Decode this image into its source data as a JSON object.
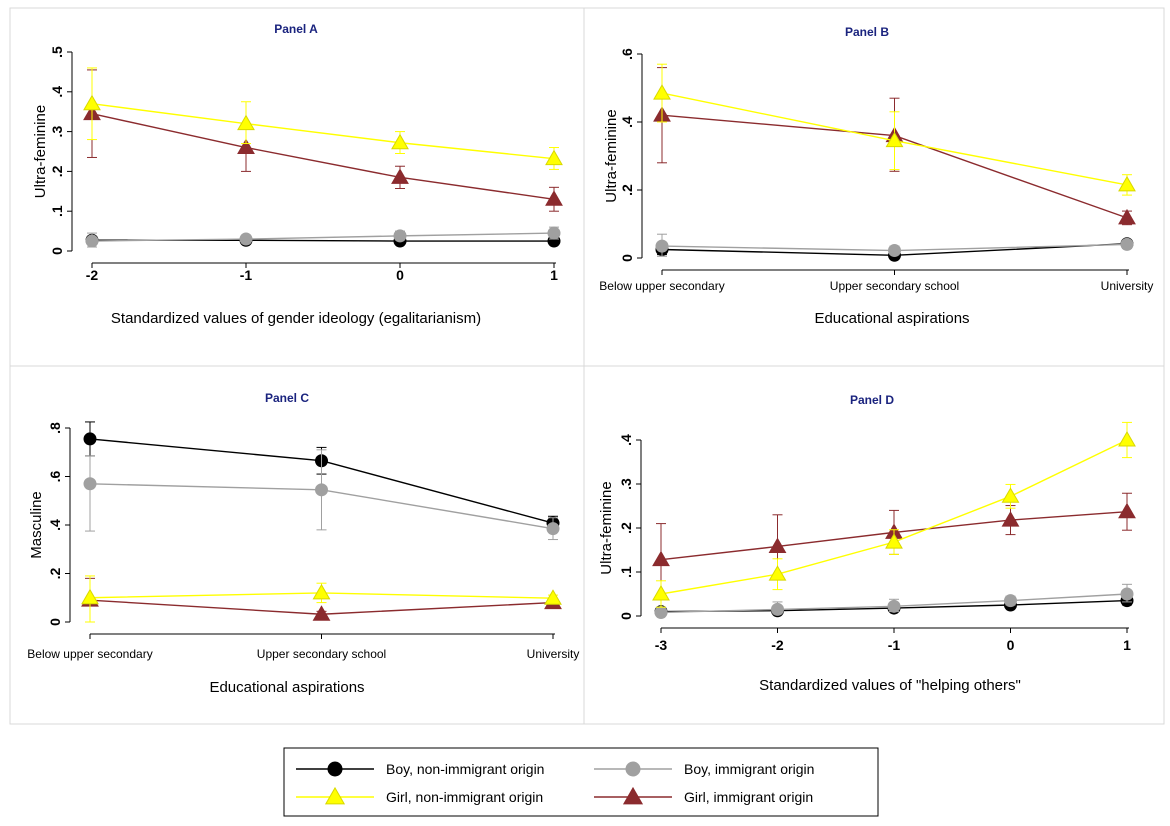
{
  "colors": {
    "boy_non": "#000000",
    "boy_imm": "#a0a0a0",
    "girl_non": "#ffff00",
    "girl_imm": "#8b2b2e",
    "panel_title": "#1a237e"
  },
  "legend": {
    "items": [
      {
        "key": "boy_non",
        "label": "Boy, non-immigrant origin",
        "marker": "circle"
      },
      {
        "key": "boy_imm",
        "label": "Boy, immigrant origin",
        "marker": "circle"
      },
      {
        "key": "girl_non",
        "label": "Girl, non-immigrant origin",
        "marker": "triangle"
      },
      {
        "key": "girl_imm",
        "label": "Girl, immigrant origin",
        "marker": "triangle"
      }
    ]
  },
  "chart_data": [
    {
      "type": "line",
      "title": "Panel A",
      "xlabel": "Standardized values of gender ideology (egalitarianism)",
      "ylabel": "Ultra-feminine",
      "categories": [
        "-2",
        "-1",
        "0",
        "1"
      ],
      "ylim": [
        0,
        0.5
      ],
      "yticks": [
        0,
        0.1,
        0.2,
        0.3,
        0.4,
        0.5
      ],
      "ytick_labels": [
        "0",
        ".1",
        ".2",
        ".3",
        ".4",
        ".5"
      ],
      "series": [
        {
          "key": "boy_non",
          "name": "Boy, non-immigrant origin",
          "values": [
            0.027,
            0.027,
            0.025,
            0.025
          ],
          "lo": [
            0.018,
            0.02,
            0.018,
            0.018
          ],
          "hi": [
            0.036,
            0.034,
            0.032,
            0.032
          ]
        },
        {
          "key": "boy_imm",
          "name": "Boy, immigrant origin",
          "values": [
            0.025,
            0.03,
            0.038,
            0.045
          ],
          "lo": [
            0.01,
            0.02,
            0.028,
            0.03
          ],
          "hi": [
            0.045,
            0.04,
            0.05,
            0.06
          ]
        },
        {
          "key": "girl_non",
          "name": "Girl, non-immigrant origin",
          "values": [
            0.37,
            0.32,
            0.272,
            0.232
          ],
          "lo": [
            0.28,
            0.27,
            0.245,
            0.205
          ],
          "hi": [
            0.46,
            0.375,
            0.3,
            0.26
          ]
        },
        {
          "key": "girl_imm",
          "name": "Girl, immigrant origin",
          "values": [
            0.345,
            0.26,
            0.185,
            0.13
          ],
          "lo": [
            0.235,
            0.2,
            0.157,
            0.1
          ],
          "hi": [
            0.455,
            0.32,
            0.213,
            0.16
          ]
        }
      ]
    },
    {
      "type": "line",
      "title": "Panel B",
      "xlabel": "Educational aspirations",
      "ylabel": "Ultra-feminine",
      "categories": [
        "Below upper secondary",
        "Upper secondary school",
        "University"
      ],
      "ylim": [
        0,
        0.6
      ],
      "yticks": [
        0,
        0.2,
        0.4,
        0.6
      ],
      "ytick_labels": [
        "0",
        ".2",
        ".4",
        ".6"
      ],
      "series": [
        {
          "key": "boy_non",
          "name": "Boy, non-immigrant origin",
          "values": [
            0.025,
            0.008,
            0.042
          ],
          "lo": [
            0.01,
            0.0,
            0.032
          ],
          "hi": [
            0.04,
            0.02,
            0.052
          ]
        },
        {
          "key": "boy_imm",
          "name": "Boy, immigrant origin",
          "values": [
            0.035,
            0.022,
            0.04
          ],
          "lo": [
            0.005,
            0.01,
            0.028
          ],
          "hi": [
            0.07,
            0.035,
            0.05
          ]
        },
        {
          "key": "girl_non",
          "name": "Girl, non-immigrant origin",
          "values": [
            0.485,
            0.345,
            0.215
          ],
          "lo": [
            0.4,
            0.26,
            0.185
          ],
          "hi": [
            0.57,
            0.43,
            0.245
          ]
        },
        {
          "key": "girl_imm",
          "name": "Girl, immigrant origin",
          "values": [
            0.42,
            0.36,
            0.118
          ],
          "lo": [
            0.28,
            0.255,
            0.098
          ],
          "hi": [
            0.56,
            0.47,
            0.138
          ]
        }
      ]
    },
    {
      "type": "line",
      "title": "Panel C",
      "xlabel": "Educational aspirations",
      "ylabel": "Masculine",
      "categories": [
        "Below upper secondary",
        "Upper secondary school",
        "University"
      ],
      "ylim": [
        0,
        0.8
      ],
      "yticks": [
        0,
        0.2,
        0.4,
        0.6,
        0.8
      ],
      "ytick_labels": [
        "0",
        ".2",
        ".4",
        ".6",
        ".8"
      ],
      "series": [
        {
          "key": "boy_non",
          "name": "Boy, non-immigrant origin",
          "values": [
            0.755,
            0.665,
            0.408
          ],
          "lo": [
            0.685,
            0.61,
            0.38
          ],
          "hi": [
            0.825,
            0.72,
            0.436
          ]
        },
        {
          "key": "boy_imm",
          "name": "Boy, immigrant origin",
          "values": [
            0.57,
            0.545,
            0.385
          ],
          "lo": [
            0.375,
            0.38,
            0.34
          ],
          "hi": [
            0.685,
            0.71,
            0.43
          ]
        },
        {
          "key": "girl_non",
          "name": "Girl, non-immigrant origin",
          "values": [
            0.1,
            0.12,
            0.098
          ],
          "lo": [
            0.0,
            0.08,
            0.085
          ],
          "hi": [
            0.19,
            0.16,
            0.111
          ]
        },
        {
          "key": "girl_imm",
          "name": "Girl, immigrant origin",
          "values": [
            0.09,
            0.032,
            0.08
          ],
          "lo": [
            0.0,
            0.02,
            0.065
          ],
          "hi": [
            0.18,
            0.044,
            0.095
          ]
        }
      ]
    },
    {
      "type": "line",
      "title": "Panel D",
      "xlabel": "Standardized values of \"helping others\"",
      "ylabel": "Ultra-feminine",
      "categories": [
        "-3",
        "-2",
        "-1",
        "0",
        "1"
      ],
      "ylim": [
        0,
        0.4
      ],
      "yticks": [
        0,
        0.1,
        0.2,
        0.3,
        0.4
      ],
      "ytick_labels": [
        "0",
        ".1",
        ".2",
        ".3",
        ".4"
      ],
      "series": [
        {
          "key": "boy_non",
          "name": "Boy, non-immigrant origin",
          "values": [
            0.01,
            0.012,
            0.018,
            0.025,
            0.035
          ],
          "lo": [
            0.003,
            0.005,
            0.01,
            0.018,
            0.025
          ],
          "hi": [
            0.017,
            0.019,
            0.026,
            0.032,
            0.045
          ]
        },
        {
          "key": "boy_imm",
          "name": "Boy, immigrant origin",
          "values": [
            0.008,
            0.015,
            0.022,
            0.035,
            0.05
          ],
          "lo": [
            0.0,
            0.005,
            0.01,
            0.025,
            0.032
          ],
          "hi": [
            0.02,
            0.032,
            0.038,
            0.045,
            0.072
          ]
        },
        {
          "key": "girl_non",
          "name": "Girl, non-immigrant origin",
          "values": [
            0.05,
            0.095,
            0.168,
            0.272,
            0.4
          ],
          "lo": [
            0.02,
            0.06,
            0.14,
            0.245,
            0.36
          ],
          "hi": [
            0.08,
            0.13,
            0.196,
            0.299,
            0.44
          ]
        },
        {
          "key": "girl_imm",
          "name": "Girl, immigrant origin",
          "values": [
            0.128,
            0.158,
            0.19,
            0.218,
            0.237
          ],
          "lo": [
            0.045,
            0.085,
            0.14,
            0.185,
            0.195
          ],
          "hi": [
            0.21,
            0.23,
            0.24,
            0.251,
            0.279
          ]
        }
      ]
    }
  ]
}
